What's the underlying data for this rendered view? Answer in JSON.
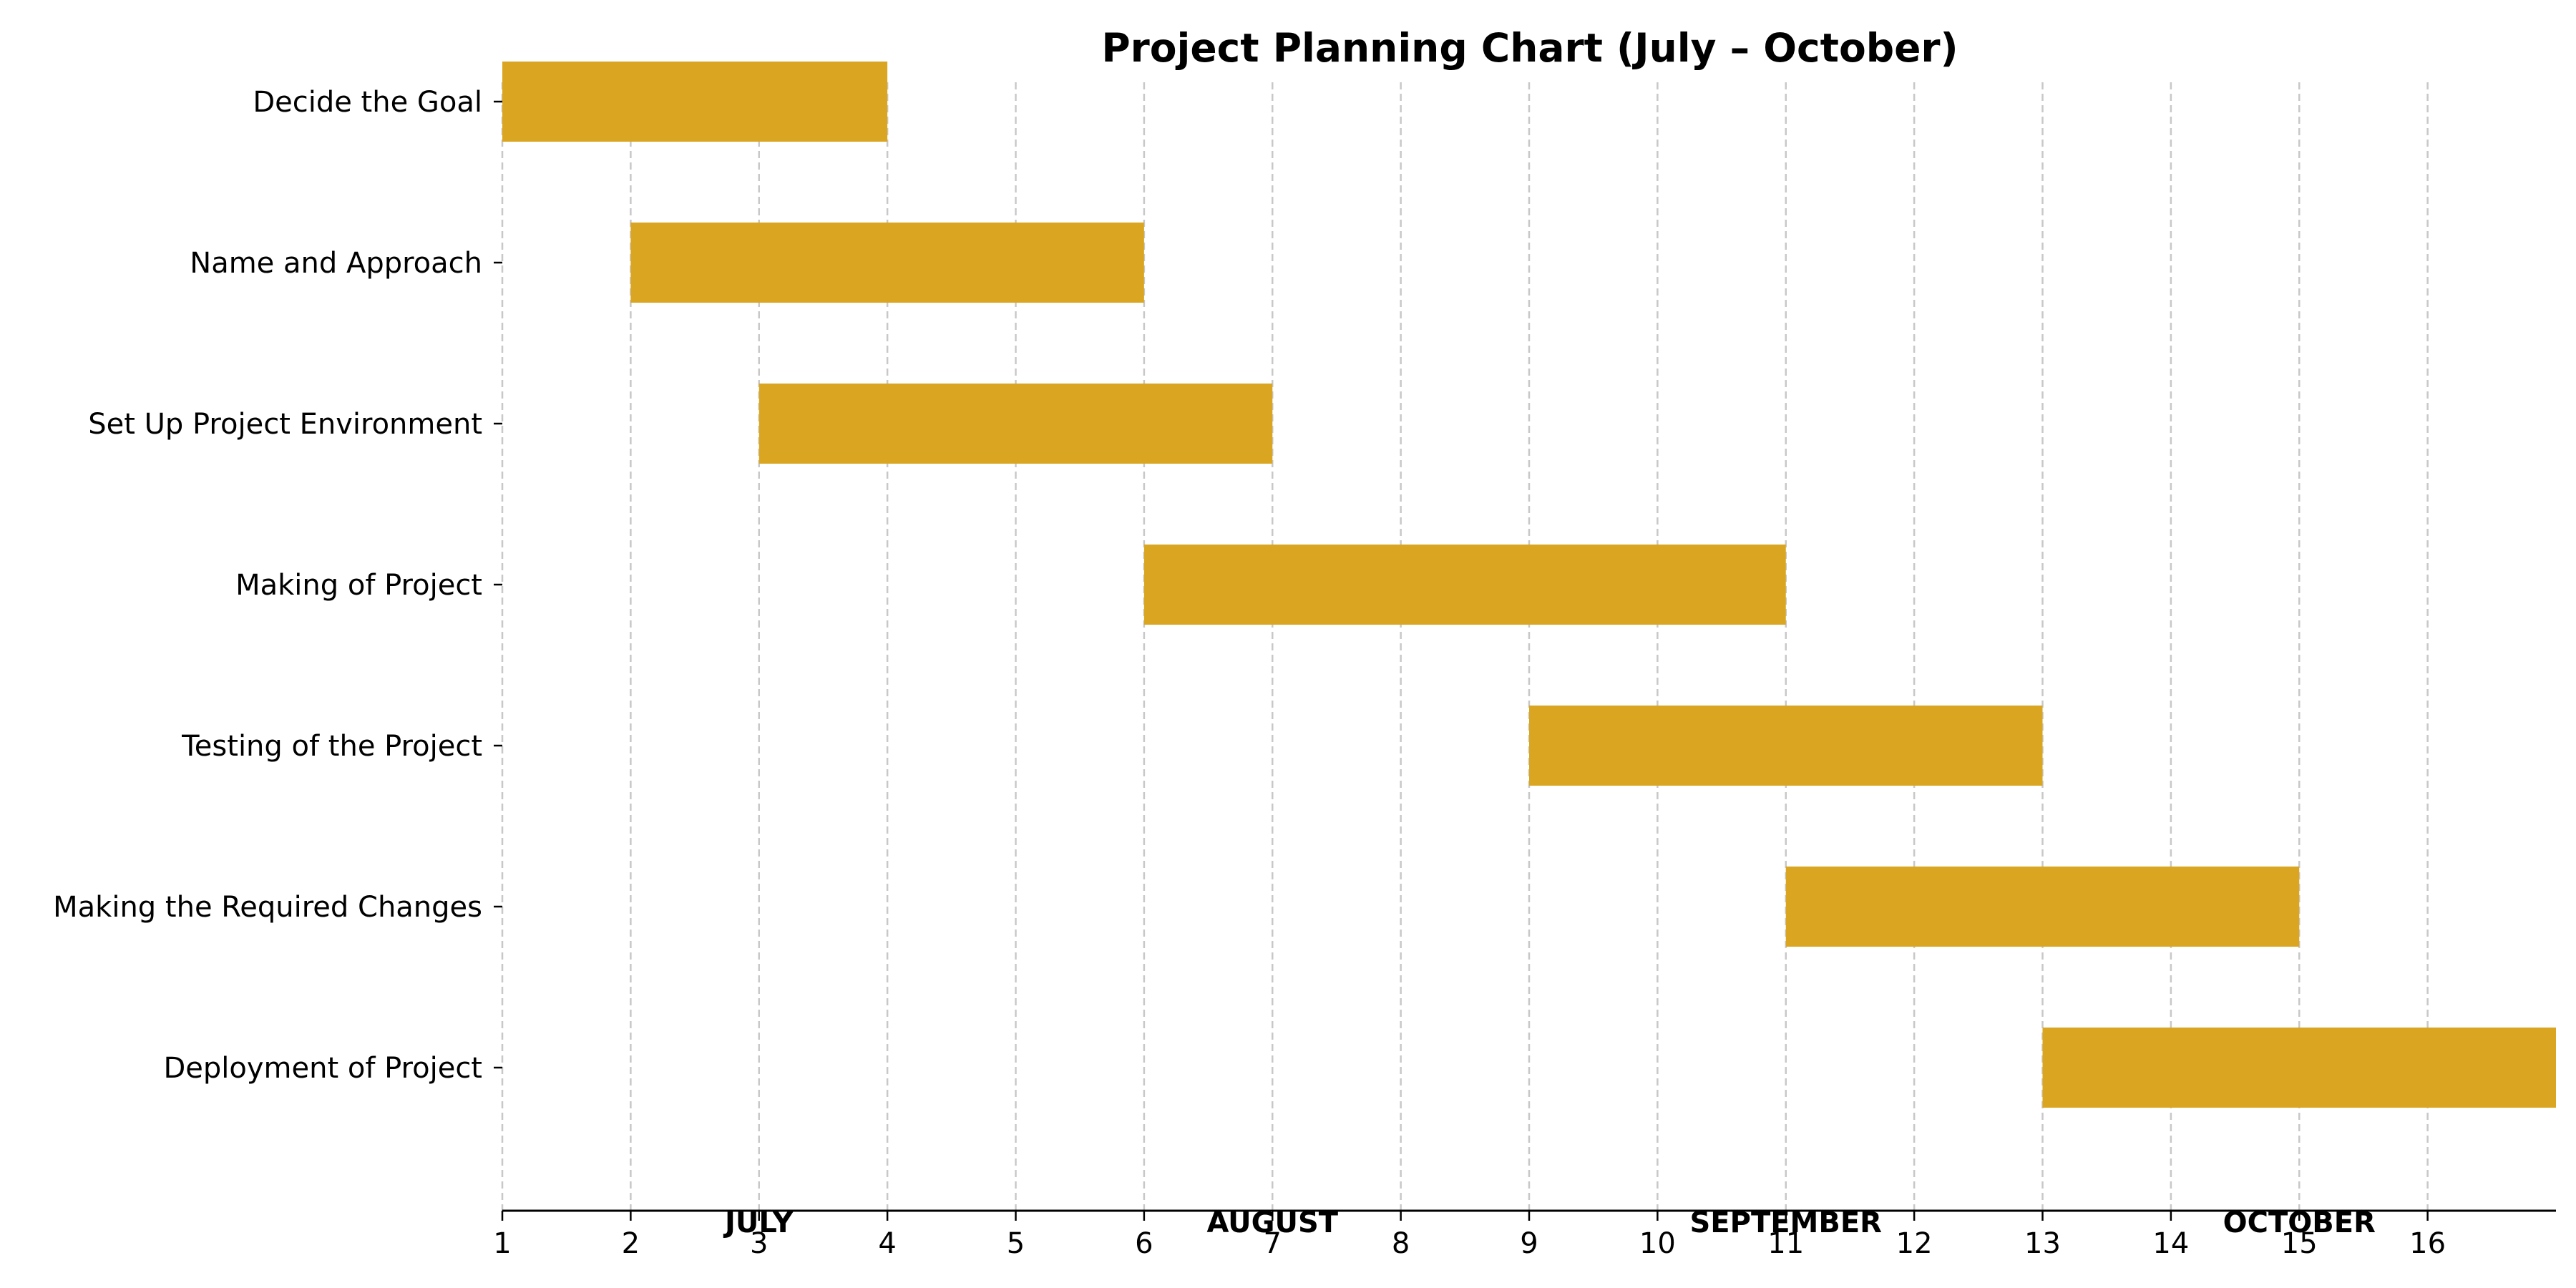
{
  "chart_data": {
    "type": "gantt",
    "title": "Project Planning Chart (July – October)",
    "xlabel": "",
    "ylabel": "",
    "xlim": [
      1,
      17
    ],
    "xticks": [
      1,
      2,
      3,
      4,
      5,
      6,
      7,
      8,
      9,
      10,
      11,
      12,
      13,
      14,
      15,
      16
    ],
    "grid": {
      "x": true,
      "y": false,
      "style": "dashed"
    },
    "bar_color": "#DAA520",
    "tasks": [
      {
        "name": "Decide the Goal",
        "start": 1,
        "end": 4
      },
      {
        "name": "Name and Approach",
        "start": 2,
        "end": 6
      },
      {
        "name": "Set Up Project Environment",
        "start": 3,
        "end": 7
      },
      {
        "name": "Making of Project",
        "start": 6,
        "end": 11
      },
      {
        "name": "Testing of the Project",
        "start": 9,
        "end": 13
      },
      {
        "name": "Making the Required Changes",
        "start": 11,
        "end": 15
      },
      {
        "name": "Deployment of Project",
        "start": 13,
        "end": 17
      }
    ],
    "month_labels": [
      {
        "label": "JULY",
        "x": 3
      },
      {
        "label": "AUGUST",
        "x": 7
      },
      {
        "label": "SEPTEMBER",
        "x": 11
      },
      {
        "label": "OCTOBER",
        "x": 15
      }
    ]
  }
}
